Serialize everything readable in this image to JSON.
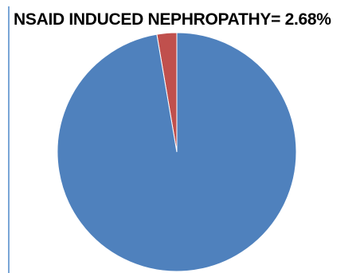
{
  "title": "NSAID INDUCED NEPHROPATHY= 2.68%",
  "chart_data": {
    "type": "pie",
    "title": "NSAID INDUCED NEPHROPATHY= 2.68%",
    "slices": [
      {
        "value": 2.68,
        "color": "#c0504d"
      },
      {
        "value": 97.32,
        "color": "#4f81bd"
      }
    ],
    "start_angle": "top",
    "direction": "counter-clockwise",
    "legend": "none"
  },
  "colors": {
    "frame_border": "#7aa6d6",
    "slice_stroke": "#ffffff"
  }
}
